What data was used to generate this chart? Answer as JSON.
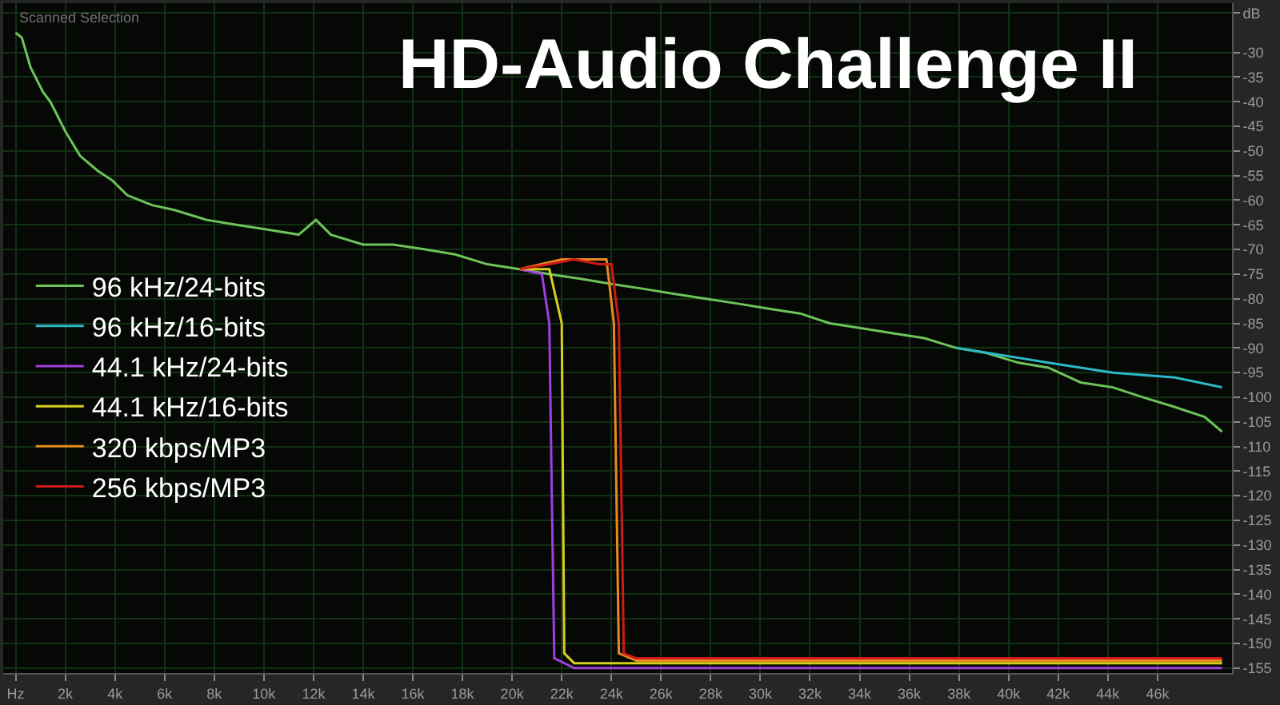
{
  "chart_data": {
    "type": "line",
    "title": "HD-Audio Challenge II",
    "annotations": [
      "Scanned Selection"
    ],
    "xlim": [
      -0.5,
      49
    ],
    "ylim": [
      -156,
      -20
    ],
    "xticks": [
      {
        "value": 0,
        "label": "Hz"
      },
      {
        "value": 2,
        "label": "2k"
      },
      {
        "value": 4,
        "label": "4k"
      },
      {
        "value": 6,
        "label": "6k"
      },
      {
        "value": 8,
        "label": "8k"
      },
      {
        "value": 10,
        "label": "10k"
      },
      {
        "value": 12,
        "label": "12k"
      },
      {
        "value": 14,
        "label": "14k"
      },
      {
        "value": 16,
        "label": "16k"
      },
      {
        "value": 18,
        "label": "18k"
      },
      {
        "value": 20,
        "label": "20k"
      },
      {
        "value": 22,
        "label": "22k"
      },
      {
        "value": 24,
        "label": "24k"
      },
      {
        "value": 26,
        "label": "26k"
      },
      {
        "value": 28,
        "label": "28k"
      },
      {
        "value": 30,
        "label": "30k"
      },
      {
        "value": 32,
        "label": "32k"
      },
      {
        "value": 34,
        "label": "34k"
      },
      {
        "value": 36,
        "label": "36k"
      },
      {
        "value": 38,
        "label": "38k"
      },
      {
        "value": 40,
        "label": "40k"
      },
      {
        "value": 42,
        "label": "42k"
      },
      {
        "value": 44,
        "label": "44k"
      },
      {
        "value": 46,
        "label": "46k"
      }
    ],
    "yticks": [
      {
        "value": -22,
        "label": "dB"
      },
      -30,
      -35,
      -40,
      -45,
      -50,
      -55,
      -60,
      -65,
      -70,
      -75,
      -80,
      -85,
      -90,
      -95,
      -100,
      -105,
      -110,
      -115,
      -120,
      -125,
      -130,
      -135,
      -140,
      -145,
      -150,
      -155
    ],
    "grid": true,
    "legend": "left",
    "marker": "none",
    "line_style": "solid",
    "series": [
      {
        "name": "96 kHz/24-bits",
        "color": "#6cc45a",
        "x": [
          0.0,
          0.25,
          0.6,
          1.1,
          1.4,
          2.0,
          2.6,
          3.3,
          3.9,
          4.5,
          5.5,
          6.4,
          7.7,
          8.9,
          10.2,
          11.4,
          12.1,
          12.7,
          14.0,
          15.2,
          16.5,
          17.7,
          19.0,
          20.3,
          21.5,
          22.8,
          24.0,
          25.3,
          26.5,
          27.8,
          29.1,
          30.3,
          31.6,
          32.8,
          34.1,
          35.3,
          36.6,
          37.9,
          39.1,
          40.4,
          41.6,
          42.9,
          44.2,
          45.4,
          46.7,
          47.9,
          48.6
        ],
        "values": [
          -26,
          -27,
          -33,
          -38,
          -40,
          -46,
          -51,
          -54,
          -56,
          -59,
          -61,
          -62,
          -64,
          -65,
          -66,
          -67,
          -64,
          -67,
          -69,
          -69,
          -70,
          -71,
          -73,
          -74,
          -75,
          -76,
          -77,
          -78,
          -79,
          -80,
          -81,
          -82,
          -83,
          -85,
          -86,
          -87,
          -88,
          -90,
          -91,
          -93,
          -94,
          -97,
          -98,
          -100,
          -102,
          -104,
          -107
        ]
      },
      {
        "name": "96 kHz/16-bits",
        "color": "#2cb8c8",
        "x": [
          37.9,
          40.4,
          41.6,
          44.2,
          46.7,
          48.6
        ],
        "values": [
          -90,
          -92,
          -93,
          -95,
          -96,
          -98
        ]
      },
      {
        "name": "44.1 kHz/24-bits",
        "color": "#a040e0",
        "x": [
          20.3,
          21.2,
          21.5,
          21.6,
          21.7,
          22.5,
          30.0,
          40.0,
          48.6
        ],
        "values": [
          -74,
          -75,
          -85,
          -120,
          -153,
          -155,
          -155,
          -155,
          -155
        ]
      },
      {
        "name": "44.1 kHz/16-bits",
        "color": "#d8d020",
        "x": [
          20.3,
          21.5,
          22.0,
          22.1,
          22.5,
          30.0,
          40.0,
          48.6
        ],
        "values": [
          -74,
          -74,
          -85,
          -152,
          -154,
          -154,
          -154,
          -154
        ]
      },
      {
        "name": "320 kbps/MP3",
        "color": "#e88a20",
        "x": [
          20.3,
          22.0,
          23.8,
          24.1,
          24.3,
          25.0,
          35.0,
          48.6
        ],
        "values": [
          -74,
          -72,
          -72,
          -85,
          -152,
          -153.5,
          -153.5,
          -153.5
        ]
      },
      {
        "name": "256 kbps/MP3",
        "color": "#d01818",
        "x": [
          20.3,
          21.5,
          22.5,
          23.5,
          24.0,
          24.3,
          24.5,
          25.0,
          35.0,
          48.6
        ],
        "values": [
          -74,
          -73,
          -72,
          -73,
          -73,
          -85,
          -152,
          -153,
          -153,
          -153
        ]
      }
    ]
  }
}
